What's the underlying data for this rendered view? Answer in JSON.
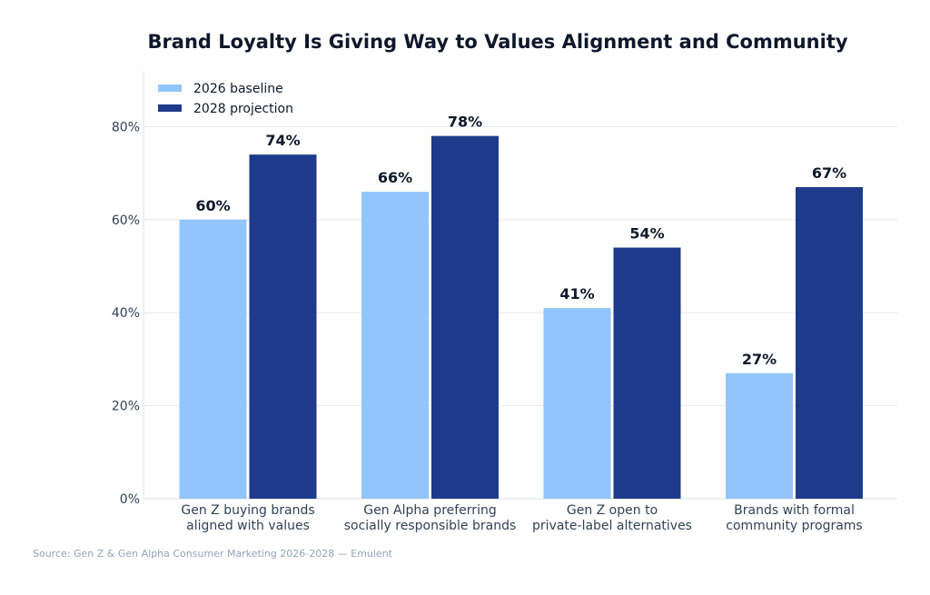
{
  "chart_data": {
    "type": "bar",
    "title": "Brand Loyalty Is Giving Way to Values Alignment and Community",
    "xlabel": "",
    "ylabel": "",
    "categories": [
      [
        "Gen Z buying brands",
        "aligned with values"
      ],
      [
        "Gen Alpha preferring",
        "socially responsible brands"
      ],
      [
        "Gen Z open to",
        "private-label alternatives"
      ],
      [
        "Brands with formal",
        "community programs"
      ]
    ],
    "series": [
      {
        "name": "2026 baseline",
        "color": "#93c5fd",
        "values": [
          60,
          66,
          41,
          27
        ],
        "labels": [
          "60%",
          "66%",
          "41%",
          "27%"
        ]
      },
      {
        "name": "2028 projection",
        "color": "#1e3a8a",
        "values": [
          74,
          78,
          54,
          67
        ],
        "labels": [
          "74%",
          "78%",
          "54%",
          "67%"
        ]
      }
    ],
    "ylim": [
      0,
      92
    ],
    "yticks": [
      0,
      20,
      40,
      60,
      80
    ],
    "ytick_labels": [
      "0%",
      "20%",
      "40%",
      "60%",
      "80%"
    ],
    "grid": "horizontal",
    "legend_position": "top-left",
    "source": "Source: Gen Z & Gen Alpha Consumer Marketing 2026-2028 — Emulent"
  }
}
